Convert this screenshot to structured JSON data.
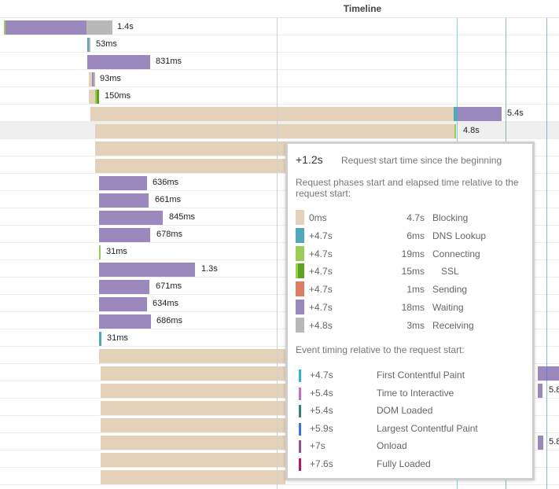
{
  "header": {
    "title": "Timeline"
  },
  "colors": {
    "blocking": "#e3d1b9",
    "dns": "#4fa9b8",
    "connecting": "#9acd58",
    "ssl": "#62a320",
    "sending": "#dd7e64",
    "waiting": "#9b89be",
    "receiving": "#b8b8b8",
    "first_contentful_paint": "#2bb4d4",
    "time_to_interactive": "#c06ec6",
    "dom_loaded": "#338477",
    "largest_contentful_paint": "#3a72d6",
    "onload": "#954f96",
    "fully_loaded": "#b8185f"
  },
  "rows": [
    {
      "label": "1.4s",
      "highlight": false
    },
    {
      "label": "53ms",
      "highlight": false
    },
    {
      "label": "831ms",
      "highlight": false
    },
    {
      "label": "93ms",
      "highlight": false
    },
    {
      "label": "150ms",
      "highlight": false
    },
    {
      "label": "5.4s",
      "highlight": false
    },
    {
      "label": "4.8s",
      "highlight": true
    },
    {
      "label": "",
      "highlight": false
    },
    {
      "label": "",
      "highlight": false
    },
    {
      "label": "636ms",
      "highlight": false
    },
    {
      "label": "661ms",
      "highlight": false
    },
    {
      "label": "845ms",
      "highlight": false
    },
    {
      "label": "678ms",
      "highlight": false
    },
    {
      "label": "31ms",
      "highlight": false
    },
    {
      "label": "1.3s",
      "highlight": false
    },
    {
      "label": "671ms",
      "highlight": false
    },
    {
      "label": "634ms",
      "highlight": false
    },
    {
      "label": "686ms",
      "highlight": false
    },
    {
      "label": "31ms",
      "highlight": false
    },
    {
      "label": "",
      "highlight": false
    },
    {
      "label": "",
      "highlight": false
    },
    {
      "label": "5.8",
      "highlight": false
    },
    {
      "label": "",
      "highlight": false
    },
    {
      "label": "",
      "highlight": false
    },
    {
      "label": "5.8",
      "highlight": false
    },
    {
      "label": "",
      "highlight": false
    },
    {
      "label": "",
      "highlight": false
    }
  ],
  "tooltip": {
    "start_time": "+1.2s",
    "start_desc": "Request start time since the beginning",
    "phases_note": "Request phases start and elapsed time relative to the request start:",
    "phases": [
      {
        "start": "0ms",
        "duration": "4.7s",
        "name": "Blocking"
      },
      {
        "start": "+4.7s",
        "duration": "6ms",
        "name": "DNS Lookup"
      },
      {
        "start": "+4.7s",
        "duration": "19ms",
        "name": "Connecting"
      },
      {
        "start": "+4.7s",
        "duration": "15ms",
        "name": "SSL"
      },
      {
        "start": "+4.7s",
        "duration": "1ms",
        "name": "Sending"
      },
      {
        "start": "+4.7s",
        "duration": "18ms",
        "name": "Waiting"
      },
      {
        "start": "+4.8s",
        "duration": "3ms",
        "name": "Receiving"
      }
    ],
    "events_note": "Event timing relative to the request start:",
    "events": [
      {
        "time": "+4.7s",
        "name": "First Contentful Paint"
      },
      {
        "time": "+5.4s",
        "name": "Time to Interactive"
      },
      {
        "time": "+5.4s",
        "name": "DOM Loaded"
      },
      {
        "time": "+5.9s",
        "name": "Largest Contentful Paint"
      },
      {
        "time": "+7s",
        "name": "Onload"
      },
      {
        "time": "+7.6s",
        "name": "Fully Loaded"
      }
    ]
  }
}
